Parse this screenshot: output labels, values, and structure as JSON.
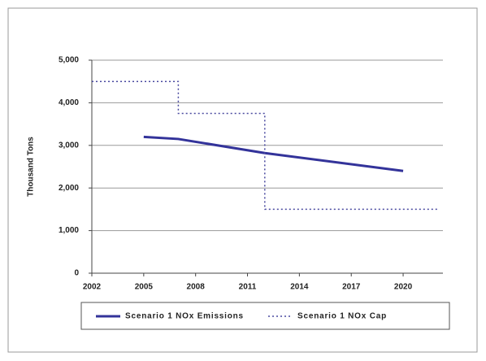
{
  "chart_data": {
    "type": "line",
    "y_label": "Thousand Tons",
    "xlim": [
      2002,
      2022.3
    ],
    "xticks": [
      2002,
      2005,
      2008,
      2011,
      2014,
      2017,
      2020
    ],
    "ylim": [
      0,
      5000
    ],
    "yticks": [
      0,
      {
        "value": 1000,
        "label": "1,000"
      },
      {
        "value": 2000,
        "label": "2,000"
      },
      {
        "value": 3000,
        "label": "3,000"
      },
      {
        "value": 4000,
        "label": "4,000"
      },
      {
        "value": 5000,
        "label": "5,000"
      }
    ],
    "grid": true,
    "legend": "bottom",
    "series": [
      {
        "name": "Scenario 1 NOx Emissions",
        "color": "#33339a",
        "style": "solid",
        "x": [
          2005,
          2007,
          2012,
          2020
        ],
        "values": [
          3200,
          3150,
          2820,
          2400
        ]
      },
      {
        "name": "Scenario 1 NOx Cap",
        "color": "#4a4aa0",
        "style": "dotted",
        "x": [
          2002,
          2007,
          2007,
          2012,
          2012,
          2022
        ],
        "values": [
          4500,
          4500,
          3750,
          3750,
          1500,
          1500
        ]
      }
    ]
  }
}
